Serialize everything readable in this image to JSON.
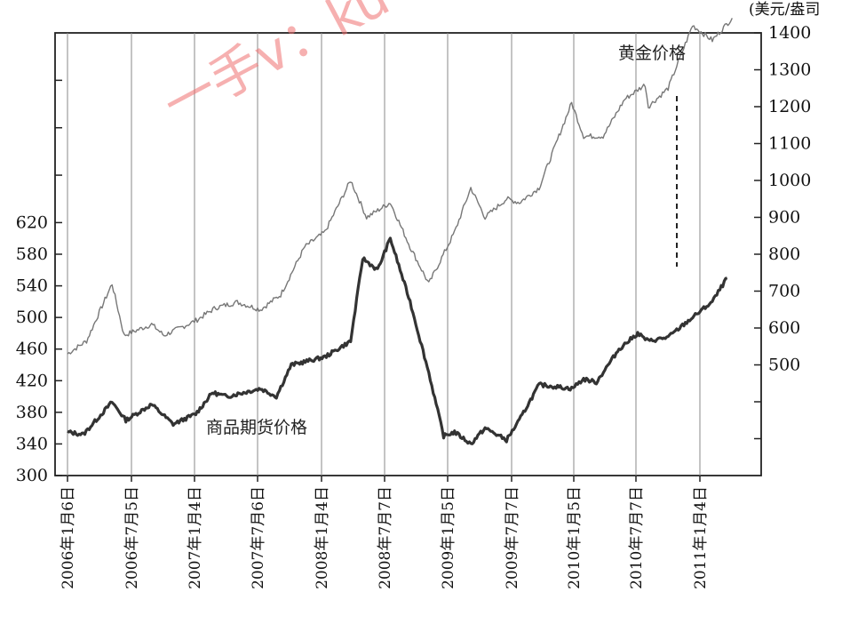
{
  "chart_data": {
    "type": "line",
    "right_axis_unit": "(美元/盎司",
    "watermark": "一手v：ku",
    "x_tick_labels": [
      "2006年1月6日",
      "2006年7月5日",
      "2007年1月4日",
      "2007年7月6日",
      "2008年1月4日",
      "2008年7月7日",
      "2009年1月5日",
      "2009年7月7日",
      "2010年1月5日",
      "2010年7月7日",
      "2011年1月4日"
    ],
    "left_axis": {
      "ticks": [
        300,
        340,
        380,
        420,
        460,
        500,
        540,
        580,
        620
      ],
      "ylim": [
        300,
        860
      ]
    },
    "right_axis": {
      "ticks": [
        500,
        600,
        700,
        800,
        900,
        1000,
        1100,
        1200,
        1300,
        1400
      ],
      "ylim": [
        200,
        1400
      ]
    },
    "series": [
      {
        "name": "黄金价格",
        "axis": "right",
        "color": "#777777",
        "x": [
          "2006-01-06",
          "2006-03-01",
          "2006-05-12",
          "2006-06-15",
          "2006-09-01",
          "2006-10-06",
          "2007-01-04",
          "2007-03-01",
          "2007-05-01",
          "2007-07-06",
          "2007-09-01",
          "2007-11-08",
          "2008-01-04",
          "2008-03-17",
          "2008-05-01",
          "2008-07-07",
          "2008-09-01",
          "2008-10-24",
          "2009-01-05",
          "2009-02-20",
          "2009-04-01",
          "2009-06-01",
          "2009-07-07",
          "2009-09-01",
          "2009-12-02",
          "2010-01-05",
          "2010-03-01",
          "2010-05-01",
          "2010-06-28",
          "2010-07-07",
          "2010-09-01",
          "2010-11-09",
          "2011-01-04",
          "2011-03-01"
        ],
        "values": [
          530,
          565,
          720,
          580,
          610,
          580,
          620,
          655,
          670,
          650,
          690,
          820,
          860,
          1000,
          900,
          940,
          820,
          720,
          860,
          980,
          900,
          950,
          940,
          980,
          1210,
          1120,
          1120,
          1220,
          1260,
          1200,
          1250,
          1420,
          1380,
          1440
        ]
      },
      {
        "name": "商品期货价格",
        "axis": "left",
        "color": "#333333",
        "x": [
          "2006-01-06",
          "2006-02-20",
          "2006-05-12",
          "2006-06-20",
          "2006-09-01",
          "2006-11-01",
          "2007-01-04",
          "2007-02-20",
          "2007-04-01",
          "2007-07-06",
          "2007-08-20",
          "2007-10-01",
          "2008-01-04",
          "2008-03-17",
          "2008-04-20",
          "2008-06-01",
          "2008-07-07",
          "2008-09-01",
          "2008-10-24",
          "2008-12-05",
          "2009-01-05",
          "2009-02-20",
          "2009-04-01",
          "2009-06-01",
          "2009-07-07",
          "2009-09-01",
          "2009-12-02",
          "2010-01-05",
          "2010-02-10",
          "2010-04-15",
          "2010-06-07",
          "2010-07-07",
          "2010-09-01",
          "2010-11-09",
          "2011-01-04",
          "2011-02-15"
        ],
        "values": [
          355,
          352,
          393,
          370,
          390,
          365,
          378,
          405,
          400,
          410,
          400,
          440,
          450,
          470,
          575,
          560,
          600,
          520,
          430,
          350,
          355,
          340,
          360,
          345,
          370,
          415,
          410,
          422,
          418,
          460,
          480,
          470,
          475,
          500,
          520,
          550
        ]
      }
    ]
  }
}
